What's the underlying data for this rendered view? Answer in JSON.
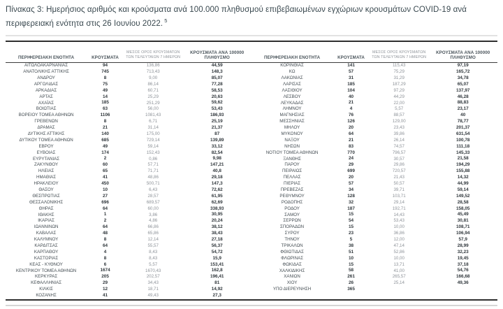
{
  "title": {
    "text": "Πίνακας 3:  Ημερήσιος αριθμός και κρούσματα ανά 100.000 πληθυσμού επιβεβαιωμένων εγχώριων κρουσμάτων COVID-19 ανά περιφερειακή ενότητα στις 26 Ιουνίου 2022.",
    "footnote_marker": "5"
  },
  "table": {
    "headers": {
      "region": "ΠΕΡΙΦΕΡΕΙΑΚΗ ΕΝΟΤΗΤΑ",
      "cases": "ΚΡΟΥΣΜΑΤΑ",
      "avg7_line1": "ΜΕΣΟΣ ΟΡΟΣ ΚΡΟΥΣΜΑΤΩΝ",
      "avg7_line2": "ΤΩΝ ΤΕΛΕΥΤΑΙΩΝ 7 ΗΜΕΡΩΝ",
      "per100k_line1": "ΚΡΟΥΣΜΑΤΑ ΑΝΑ 100000",
      "per100k_line2": "ΠΛΗΘΥΣΜΟ"
    },
    "left_rows": [
      [
        "ΑΙΤΩΛΟΑΚΑΡΝΑΝΙΑΣ",
        "94",
        "136,86",
        "44,59"
      ],
      [
        "ΑΝΑΤΟΛΙΚΗΣ ΑΤΤΙΚΗΣ",
        "745",
        "713,43",
        "148,3"
      ],
      [
        "ΑΝΔΡΟΥ",
        "8",
        "9,00",
        "85,07"
      ],
      [
        "ΑΡΓΟΛΙΔΑΣ",
        "75",
        "86,14",
        "77,28"
      ],
      [
        "ΑΡΚΑΔΙΑΣ",
        "49",
        "60,71",
        "58,53"
      ],
      [
        "ΑΡΤΑΣ",
        "14",
        "25,29",
        "20,63"
      ],
      [
        "ΑΧΑΪΑΣ",
        "185",
        "251,29",
        "59,62"
      ],
      [
        "ΒΟΙΩΤΙΑΣ",
        "63",
        "56,00",
        "53,43"
      ],
      [
        "ΒΟΡΕΙΟΥ ΤΟΜΕΑ ΑΘΗΝΩΝ",
        "1106",
        "1081,43",
        "186,93"
      ],
      [
        "ΓΡΕΒΕΝΩΝ",
        "8",
        "6,71",
        "25,19"
      ],
      [
        "ΔΡΑΜΑΣ",
        "21",
        "31,14",
        "21,37"
      ],
      [
        "ΔΥΤΙΚΗΣ ΑΤΤΙΚΗΣ",
        "140",
        "175,00",
        "87"
      ],
      [
        "ΔΥΤΙΚΟΥ ΤΟΜΕΑ ΑΘΗΝΩΝ",
        "685",
        "729,14",
        "139,89"
      ],
      [
        "ΕΒΡΟΥ",
        "49",
        "59,14",
        "33,12"
      ],
      [
        "ΕΥΒΟΙΑΣ",
        "174",
        "152,43",
        "82,54"
      ],
      [
        "ΕΥΡΥΤΑΝΙΑΣ",
        "2",
        "0,86",
        "9,98"
      ],
      [
        "ΖΑΚΥΝΘΟΥ",
        "60",
        "57,71",
        "147,21"
      ],
      [
        "ΗΛΕΙΑΣ",
        "65",
        "71,71",
        "40,8"
      ],
      [
        "ΗΜΑΘΙΑΣ",
        "41",
        "48,86",
        "29,18"
      ],
      [
        "ΗΡΑΚΛΕΙΟΥ",
        "450",
        "500,71",
        "147,3"
      ],
      [
        "ΘΑΣΟΥ",
        "10",
        "6,43",
        "72,62"
      ],
      [
        "ΘΕΣΠΡΩΤΙΑΣ",
        "27",
        "28,57",
        "61,95"
      ],
      [
        "ΘΕΣΣΑΛΟΝΙΚΗΣ",
        "696",
        "689,57",
        "62,69"
      ],
      [
        "ΘΗΡΑΣ",
        "64",
        "60,00",
        "338,93"
      ],
      [
        "ΙΘΑΚΗΣ",
        "1",
        "3,86",
        "30,95"
      ],
      [
        "ΙΚΑΡΙΑΣ",
        "2",
        "4,86",
        "20,24"
      ],
      [
        "ΙΩΑΝΝΙΝΩΝ",
        "64",
        "66,86",
        "38,12"
      ],
      [
        "ΚΑΒΑΛΑΣ",
        "48",
        "65,86",
        "38,43"
      ],
      [
        "ΚΑΛΥΜΝΟΥ",
        "8",
        "12,14",
        "27,18"
      ],
      [
        "ΚΑΡΔΙΤΣΑΣ",
        "64",
        "55,57",
        "56,37"
      ],
      [
        "ΚΑΡΠΑΘΟΥ",
        "4",
        "8,43",
        "54,72"
      ],
      [
        "ΚΑΣΤΟΡΙΑΣ",
        "8",
        "8,43",
        "15,9"
      ],
      [
        "ΚΕΑΣ - ΚΥΘΝΟΥ",
        "6",
        "5,57",
        "153,41"
      ],
      [
        "ΚΕΝΤΡΙΚΟΥ ΤΟΜΕΑ ΑΘΗΝΩΝ",
        "1674",
        "1670,43",
        "162,8"
      ],
      [
        "ΚΕΡΚΥΡΑΣ",
        "205",
        "202,57",
        "196,41"
      ],
      [
        "ΚΕΦΑΛΛΗΝΙΑΣ",
        "29",
        "34,43",
        "81"
      ],
      [
        "ΚΙΛΚΙΣ",
        "12",
        "18,71",
        "14,92"
      ],
      [
        "ΚΟΖΑΝΗΣ",
        "41",
        "49,43",
        "27,3"
      ]
    ],
    "right_rows": [
      [
        "ΚΟΡΙΝΘΙΑΣ",
        "141",
        "115,43",
        "97,19"
      ],
      [
        "ΚΩ",
        "57",
        "75,29",
        "165,72"
      ],
      [
        "ΛΑΚΩΝΙΑΣ",
        "31",
        "31,29",
        "34,78"
      ],
      [
        "ΛΑΡΙΣΑΣ",
        "185",
        "187,29",
        "65,07"
      ],
      [
        "ΛΑΣΙΘΙΟΥ",
        "104",
        "97,29",
        "137,97"
      ],
      [
        "ΛΕΣΒΟΥ",
        "40",
        "44,29",
        "46,28"
      ],
      [
        "ΛΕΥΚΑΔΑΣ",
        "21",
        "22,00",
        "88,83"
      ],
      [
        "ΛΗΜΝΟΥ",
        "4",
        "5,57",
        "23,17"
      ],
      [
        "ΜΑΓΝΗΣΙΑΣ",
        "76",
        "88,57",
        "40"
      ],
      [
        "ΜΕΣΣΗΝΙΑΣ",
        "126",
        "129,00",
        "78,77"
      ],
      [
        "ΜΗΛΟΥ",
        "20",
        "23,43",
        "201,37"
      ],
      [
        "ΜΥΚΟΝΟΥ",
        "64",
        "39,86",
        "631,54"
      ],
      [
        "ΝΑΞΟΥ",
        "21",
        "26,14",
        "100,78"
      ],
      [
        "ΝΗΣΩΝ",
        "83",
        "74,57",
        "111,18"
      ],
      [
        "ΝΟΤΙΟΥ ΤΟΜΕΑ ΑΘΗΝΩΝ",
        "770",
        "796,57",
        "145,33"
      ],
      [
        "ΞΑΝΘΗΣ",
        "24",
        "30,57",
        "21,58"
      ],
      [
        "ΠΑΡΟΥ",
        "29",
        "29,86",
        "194,29"
      ],
      [
        "ΠΕΙΡΑΙΩΣ",
        "699",
        "720,57",
        "155,88"
      ],
      [
        "ΠΕΛΛΑΣ",
        "20",
        "21,43",
        "14,32"
      ],
      [
        "ΠΙΕΡΙΑΣ",
        "57",
        "50,57",
        "44,99"
      ],
      [
        "ΠΡΕΒΕΖΑΣ",
        "34",
        "39,71",
        "59,14"
      ],
      [
        "ΡΕΘΥΜΝΟΥ",
        "128",
        "103,71",
        "149,52"
      ],
      [
        "ΡΟΔΟΠΗΣ",
        "32",
        "29,14",
        "28,58"
      ],
      [
        "ΡΟΔΟΥ",
        "187",
        "192,71",
        "158,05"
      ],
      [
        "ΣΑΜΟΥ",
        "15",
        "14,43",
        "45,49"
      ],
      [
        "ΣΕΡΡΩΝ",
        "54",
        "53,43",
        "30,81"
      ],
      [
        "ΣΠΟΡΑΔΩΝ",
        "15",
        "10,00",
        "108,71"
      ],
      [
        "ΣΥΡΟΥ",
        "23",
        "36,86",
        "106,94"
      ],
      [
        "ΤΗΝΟΥ",
        "5",
        "12,00",
        "57,9"
      ],
      [
        "ΤΡΙΚΑΛΩΝ",
        "38",
        "47,14",
        "28,99"
      ],
      [
        "ΦΘΙΩΤΙΔΑΣ",
        "51",
        "52,86",
        "32,23"
      ],
      [
        "ΦΛΩΡΙΝΑΣ",
        "10",
        "10,00",
        "19,45"
      ],
      [
        "ΦΩΚΙΔΑΣ",
        "15",
        "13,71",
        "37,18"
      ],
      [
        "ΧΑΛΚΙΔΙΚΗΣ",
        "58",
        "41,00",
        "54,76"
      ],
      [
        "ΧΑΝΙΩΝ",
        "261",
        "265,57",
        "166,68"
      ],
      [
        "ΧΙΟΥ",
        "26",
        "25,14",
        "49,36"
      ],
      [
        "ΥΠΟ ΔΙΕΡΕΥΝΗΣΗ",
        "365",
        "",
        ""
      ]
    ]
  },
  "colors": {
    "title_text": "#39484f",
    "table_border_dark": "#2f2f2f",
    "separator_light": "#e2e2e2",
    "muted_column": "#8d9298"
  }
}
